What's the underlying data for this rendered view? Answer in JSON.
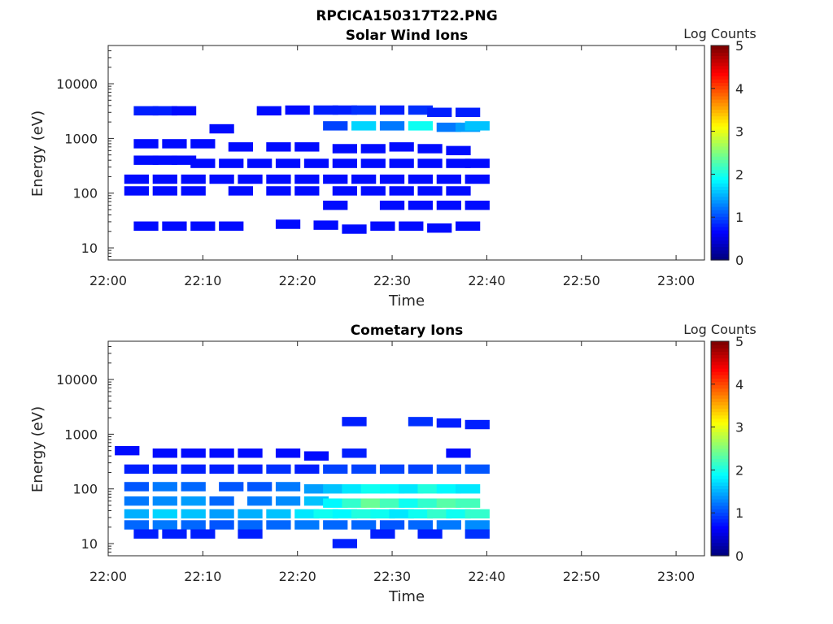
{
  "figure": {
    "title": "RPCICA150317T22.PNG"
  },
  "colors": {
    "axis": "#262626",
    "colormap": "jet"
  },
  "chart_data": [
    {
      "type": "heatmap",
      "title": "Solar Wind Ions",
      "xlabel": "Time",
      "ylabel": "Energy (eV)",
      "colorbar_label": "Log Counts",
      "colorbar_ticks": [
        "0",
        "1",
        "2",
        "3",
        "4",
        "5"
      ],
      "clim": [
        0,
        5
      ],
      "xlim": [
        "22:00",
        "23:03"
      ],
      "ylim": [
        6,
        50000
      ],
      "yscale": "log",
      "x_ticks": [
        "22:00",
        "22:10",
        "22:20",
        "22:30",
        "22:40",
        "22:50",
        "23:00"
      ],
      "y_ticks": [
        "10",
        "100",
        "1000",
        "10000"
      ],
      "data_time_range": [
        "22:01",
        "22:40"
      ],
      "cells": [
        [
          "22:04",
          3200,
          0.3
        ],
        [
          "22:06",
          3200,
          0.3
        ],
        [
          "22:08",
          3200,
          0.2
        ],
        [
          "22:17",
          3200,
          0.2
        ],
        [
          "22:20",
          3300,
          0.2
        ],
        [
          "22:23",
          3300,
          0.3
        ],
        [
          "22:25",
          3300,
          0.3
        ],
        [
          "22:27",
          3300,
          0.4
        ],
        [
          "22:30",
          3300,
          0.3
        ],
        [
          "22:33",
          3300,
          0.4
        ],
        [
          "22:35",
          3000,
          0.3
        ],
        [
          "22:38",
          3000,
          0.3
        ],
        [
          "22:24",
          1700,
          0.5
        ],
        [
          "22:27",
          1700,
          1.3
        ],
        [
          "22:30",
          1700,
          0.8
        ],
        [
          "22:33",
          1700,
          1.6
        ],
        [
          "22:36",
          1600,
          0.8
        ],
        [
          "22:38",
          1600,
          1.0
        ],
        [
          "22:39",
          1700,
          1.2
        ],
        [
          "22:12",
          1500,
          0.2
        ],
        [
          "22:04",
          800,
          0.2
        ],
        [
          "22:07",
          800,
          0.2
        ],
        [
          "22:10",
          800,
          0.2
        ],
        [
          "22:14",
          700,
          0.2
        ],
        [
          "22:18",
          700,
          0.2
        ],
        [
          "22:21",
          700,
          0.2
        ],
        [
          "22:25",
          650,
          0.2
        ],
        [
          "22:28",
          650,
          0.2
        ],
        [
          "22:31",
          700,
          0.2
        ],
        [
          "22:34",
          650,
          0.2
        ],
        [
          "22:37",
          600,
          0.2
        ],
        [
          "22:04",
          400,
          0.2
        ],
        [
          "22:06",
          400,
          0.2
        ],
        [
          "22:08",
          400,
          0.2
        ],
        [
          "22:10",
          350,
          0.2
        ],
        [
          "22:13",
          350,
          0.2
        ],
        [
          "22:16",
          350,
          0.2
        ],
        [
          "22:19",
          350,
          0.2
        ],
        [
          "22:22",
          350,
          0.2
        ],
        [
          "22:25",
          350,
          0.2
        ],
        [
          "22:28",
          350,
          0.2
        ],
        [
          "22:31",
          350,
          0.2
        ],
        [
          "22:34",
          350,
          0.2
        ],
        [
          "22:37",
          350,
          0.2
        ],
        [
          "22:39",
          350,
          0.2
        ],
        [
          "22:03",
          180,
          0.2
        ],
        [
          "22:06",
          180,
          0.2
        ],
        [
          "22:09",
          180,
          0.2
        ],
        [
          "22:12",
          180,
          0.2
        ],
        [
          "22:15",
          180,
          0.2
        ],
        [
          "22:18",
          180,
          0.2
        ],
        [
          "22:21",
          180,
          0.2
        ],
        [
          "22:24",
          180,
          0.2
        ],
        [
          "22:27",
          180,
          0.2
        ],
        [
          "22:30",
          180,
          0.2
        ],
        [
          "22:33",
          180,
          0.2
        ],
        [
          "22:36",
          180,
          0.2
        ],
        [
          "22:39",
          180,
          0.2
        ],
        [
          "22:03",
          110,
          0.2
        ],
        [
          "22:06",
          110,
          0.2
        ],
        [
          "22:09",
          110,
          0.2
        ],
        [
          "22:14",
          110,
          0.2
        ],
        [
          "22:18",
          110,
          0.2
        ],
        [
          "22:21",
          110,
          0.2
        ],
        [
          "22:25",
          110,
          0.2
        ],
        [
          "22:28",
          110,
          0.2
        ],
        [
          "22:31",
          110,
          0.2
        ],
        [
          "22:34",
          110,
          0.2
        ],
        [
          "22:37",
          110,
          0.2
        ],
        [
          "22:24",
          60,
          0.2
        ],
        [
          "22:30",
          60,
          0.2
        ],
        [
          "22:33",
          60,
          0.2
        ],
        [
          "22:36",
          60,
          0.2
        ],
        [
          "22:39",
          60,
          0.2
        ],
        [
          "22:04",
          25,
          0.2
        ],
        [
          "22:07",
          25,
          0.2
        ],
        [
          "22:10",
          25,
          0.2
        ],
        [
          "22:13",
          25,
          0.2
        ],
        [
          "22:19",
          27,
          0.2
        ],
        [
          "22:23",
          26,
          0.2
        ],
        [
          "22:26",
          22,
          0.2
        ],
        [
          "22:29",
          25,
          0.2
        ],
        [
          "22:32",
          25,
          0.2
        ],
        [
          "22:35",
          23,
          0.2
        ],
        [
          "22:38",
          25,
          0.2
        ]
      ]
    },
    {
      "type": "heatmap",
      "title": "Cometary Ions",
      "xlabel": "Time",
      "ylabel": "Energy (eV)",
      "colorbar_label": "Log Counts",
      "colorbar_ticks": [
        "0",
        "1",
        "2",
        "3",
        "4",
        "5"
      ],
      "clim": [
        0,
        5
      ],
      "xlim": [
        "22:00",
        "23:03"
      ],
      "ylim": [
        6,
        50000
      ],
      "yscale": "log",
      "x_ticks": [
        "22:00",
        "22:10",
        "22:20",
        "22:30",
        "22:40",
        "22:50",
        "23:00"
      ],
      "y_ticks": [
        "10",
        "100",
        "1000",
        "10000"
      ],
      "data_time_range": [
        "22:01",
        "22:40"
      ],
      "cells": [
        [
          "22:26",
          1700,
          0.3
        ],
        [
          "22:33",
          1700,
          0.4
        ],
        [
          "22:36",
          1600,
          0.3
        ],
        [
          "22:39",
          1500,
          0.3
        ],
        [
          "22:02",
          500,
          0.2
        ],
        [
          "22:06",
          450,
          0.2
        ],
        [
          "22:09",
          450,
          0.2
        ],
        [
          "22:12",
          450,
          0.2
        ],
        [
          "22:15",
          450,
          0.2
        ],
        [
          "22:19",
          450,
          0.2
        ],
        [
          "22:22",
          400,
          0.2
        ],
        [
          "22:26",
          450,
          0.3
        ],
        [
          "22:37",
          450,
          0.2
        ],
        [
          "22:03",
          230,
          0.3
        ],
        [
          "22:06",
          230,
          0.3
        ],
        [
          "22:09",
          230,
          0.3
        ],
        [
          "22:12",
          230,
          0.3
        ],
        [
          "22:15",
          230,
          0.3
        ],
        [
          "22:18",
          230,
          0.4
        ],
        [
          "22:21",
          230,
          0.3
        ],
        [
          "22:24",
          230,
          0.5
        ],
        [
          "22:27",
          230,
          0.5
        ],
        [
          "22:30",
          230,
          0.5
        ],
        [
          "22:33",
          230,
          0.5
        ],
        [
          "22:36",
          230,
          0.6
        ],
        [
          "22:39",
          230,
          0.6
        ],
        [
          "22:03",
          110,
          0.6
        ],
        [
          "22:06",
          110,
          0.8
        ],
        [
          "22:09",
          110,
          0.7
        ],
        [
          "22:13",
          110,
          0.6
        ],
        [
          "22:16",
          110,
          0.6
        ],
        [
          "22:19",
          110,
          0.8
        ],
        [
          "22:22",
          100,
          1.0
        ],
        [
          "22:24",
          100,
          1.2
        ],
        [
          "22:26",
          100,
          1.4
        ],
        [
          "22:28",
          100,
          1.6
        ],
        [
          "22:30",
          100,
          1.5
        ],
        [
          "22:32",
          100,
          1.4
        ],
        [
          "22:34",
          100,
          1.7
        ],
        [
          "22:36",
          100,
          1.5
        ],
        [
          "22:38",
          100,
          1.4
        ],
        [
          "22:03",
          60,
          0.8
        ],
        [
          "22:06",
          60,
          0.9
        ],
        [
          "22:09",
          60,
          1.0
        ],
        [
          "22:12",
          60,
          0.7
        ],
        [
          "22:16",
          60,
          0.8
        ],
        [
          "22:19",
          60,
          0.9
        ],
        [
          "22:22",
          60,
          1.2
        ],
        [
          "22:24",
          55,
          1.5
        ],
        [
          "22:26",
          55,
          1.8
        ],
        [
          "22:28",
          55,
          2.1
        ],
        [
          "22:30",
          55,
          1.9
        ],
        [
          "22:32",
          55,
          1.6
        ],
        [
          "22:34",
          55,
          1.8
        ],
        [
          "22:36",
          55,
          2.0
        ],
        [
          "22:38",
          55,
          1.9
        ],
        [
          "22:03",
          35,
          1.1
        ],
        [
          "22:06",
          35,
          1.3
        ],
        [
          "22:09",
          35,
          1.2
        ],
        [
          "22:12",
          35,
          1.0
        ],
        [
          "22:15",
          35,
          1.1
        ],
        [
          "22:18",
          35,
          1.2
        ],
        [
          "22:21",
          35,
          1.4
        ],
        [
          "22:23",
          35,
          1.6
        ],
        [
          "22:25",
          35,
          1.5
        ],
        [
          "22:27",
          35,
          1.7
        ],
        [
          "22:29",
          35,
          1.6
        ],
        [
          "22:31",
          35,
          1.4
        ],
        [
          "22:33",
          35,
          1.6
        ],
        [
          "22:35",
          35,
          1.8
        ],
        [
          "22:37",
          35,
          1.6
        ],
        [
          "22:39",
          35,
          1.8
        ],
        [
          "22:03",
          22,
          0.7
        ],
        [
          "22:06",
          22,
          0.8
        ],
        [
          "22:09",
          22,
          0.7
        ],
        [
          "22:12",
          22,
          0.6
        ],
        [
          "22:15",
          22,
          0.7
        ],
        [
          "22:18",
          22,
          0.7
        ],
        [
          "22:21",
          22,
          0.8
        ],
        [
          "22:24",
          22,
          0.7
        ],
        [
          "22:27",
          22,
          0.7
        ],
        [
          "22:30",
          22,
          0.6
        ],
        [
          "22:33",
          22,
          0.7
        ],
        [
          "22:36",
          22,
          0.8
        ],
        [
          "22:39",
          22,
          0.9
        ],
        [
          "22:04",
          15,
          0.3
        ],
        [
          "22:07",
          15,
          0.3
        ],
        [
          "22:10",
          15,
          0.3
        ],
        [
          "22:15",
          15,
          0.3
        ],
        [
          "22:25",
          10,
          0.3
        ],
        [
          "22:29",
          15,
          0.3
        ],
        [
          "22:34",
          15,
          0.3
        ],
        [
          "22:39",
          15,
          0.4
        ]
      ]
    }
  ]
}
